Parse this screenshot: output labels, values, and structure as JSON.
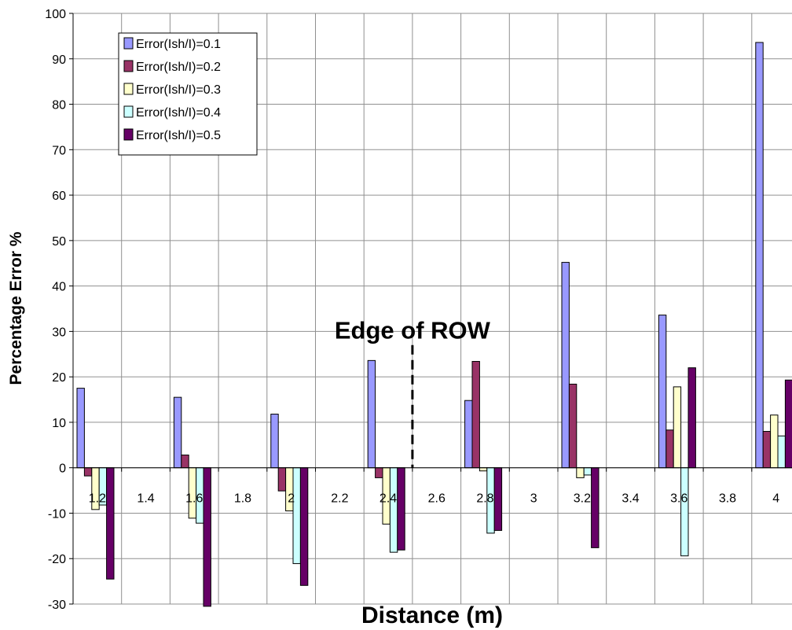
{
  "chart_data": {
    "type": "bar",
    "categories": [
      "1.2",
      "1.4",
      "1.6",
      "1.8",
      "2",
      "2.2",
      "2.4",
      "2.6",
      "2.8",
      "3",
      "3.2",
      "3.4",
      "3.6",
      "3.8",
      "4"
    ],
    "series": [
      {
        "name": "Error(Ish/I)=0.1",
        "color": "#9999ff",
        "values": [
          17.5,
          null,
          15.5,
          null,
          11.8,
          null,
          23.6,
          null,
          14.8,
          null,
          45.2,
          null,
          33.6,
          null,
          93.6
        ]
      },
      {
        "name": "Error(Ish/I)=0.2",
        "color": "#993366",
        "values": [
          -1.8,
          null,
          2.8,
          null,
          -5.1,
          null,
          -2.2,
          null,
          23.4,
          null,
          18.4,
          null,
          8.3,
          null,
          8.0
        ]
      },
      {
        "name": "Error(Ish/I)=0.3",
        "color": "#ffffcc",
        "values": [
          -9.2,
          null,
          -11.1,
          null,
          -9.5,
          null,
          -12.4,
          null,
          -0.7,
          null,
          -2.2,
          null,
          17.8,
          null,
          11.6
        ]
      },
      {
        "name": "Error(Ish/I)=0.4",
        "color": "#ccffff",
        "values": [
          -8.2,
          null,
          -12.2,
          null,
          -21.1,
          null,
          -18.6,
          null,
          -14.4,
          null,
          -1.6,
          null,
          -19.4,
          null,
          7.0
        ]
      },
      {
        "name": "Error(Ish/I)=0.5",
        "color": "#660066",
        "values": [
          -24.5,
          null,
          -30.5,
          null,
          -25.9,
          null,
          -18.1,
          null,
          -13.8,
          null,
          -17.6,
          null,
          22.0,
          null,
          19.3
        ]
      }
    ],
    "xlabel": "Distance (m)",
    "ylabel": "Percentage Error %",
    "ylim": [
      -30,
      100
    ],
    "yticks": [
      100,
      90,
      80,
      70,
      60,
      50,
      40,
      30,
      20,
      10,
      0,
      -10,
      -20,
      -30
    ],
    "grid": true,
    "legend_position": "top-left",
    "annotation": {
      "text": "Edge of ROW",
      "x_between": [
        "2.4",
        "2.6"
      ],
      "line_style": "dashed"
    }
  }
}
